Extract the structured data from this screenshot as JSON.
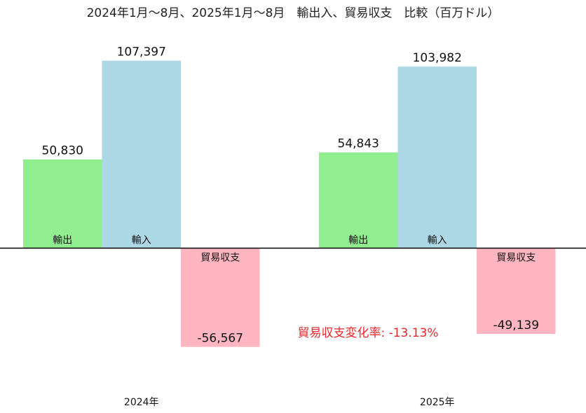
{
  "chart_data": {
    "type": "bar",
    "title": "2024年1月～8月、2025年1月～8月　輸出入、貿易収支　比較（百万ドル）",
    "groups": [
      "2024年",
      "2025年"
    ],
    "categories": [
      "輸出",
      "輸入",
      "貿易収支"
    ],
    "series": [
      {
        "group": "2024年",
        "values": [
          50830,
          107397,
          -56567
        ],
        "labels": [
          "50,830",
          "107,397",
          "-56,567"
        ]
      },
      {
        "group": "2025年",
        "values": [
          54843,
          103982,
          -49139
        ],
        "labels": [
          "54,843",
          "103,982",
          "-49,139"
        ]
      }
    ],
    "colors": [
      "#90ee90",
      "#add8e6",
      "#ffb6c1"
    ],
    "annotation": "貿易収支変化率: -13.13%",
    "annotation_color": "#e8262a",
    "grid": false,
    "legend": "none"
  }
}
